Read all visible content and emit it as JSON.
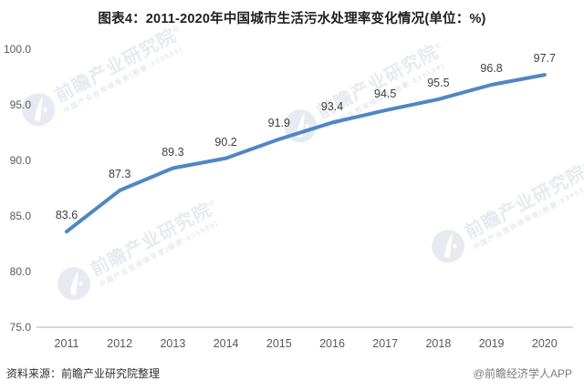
{
  "title": "图表4：2011-2020年中国城市生活污水处理率变化情况(单位：%)",
  "source_note": "资料来源：前瞻产业研究院整理",
  "attribution": "@前瞻经济学人APP",
  "watermark": {
    "brand_text": "前瞻产业研究院",
    "registered_mark": "®",
    "brand_subtext": "中国产业咨询领导者(股票:839599)"
  },
  "chart_data": {
    "type": "line",
    "title": "图表4：2011-2020年中国城市生活污水处理率变化情况(单位：%)",
    "categories": [
      "2011",
      "2012",
      "2013",
      "2014",
      "2015",
      "2016",
      "2017",
      "2018",
      "2019",
      "2020"
    ],
    "values": [
      83.6,
      87.3,
      89.3,
      90.2,
      91.9,
      93.4,
      94.5,
      95.5,
      96.8,
      97.7
    ],
    "data_labels": [
      "83.6",
      "87.3",
      "89.3",
      "90.2",
      "91.9",
      "93.4",
      "94.5",
      "95.5",
      "96.8",
      "97.7"
    ],
    "unit": "%",
    "ylim": [
      75.0,
      100.0
    ],
    "ytick_interval": 5.0,
    "yticks": [
      "100.0",
      "95.0",
      "90.0",
      "85.0",
      "80.0",
      "75.0"
    ],
    "grid": false,
    "legend": "none",
    "line_color": "#4f87c2",
    "axis_color": "#d8d8d8",
    "tick_label_color": "#595959",
    "data_label_color": "#3f3f3f"
  }
}
